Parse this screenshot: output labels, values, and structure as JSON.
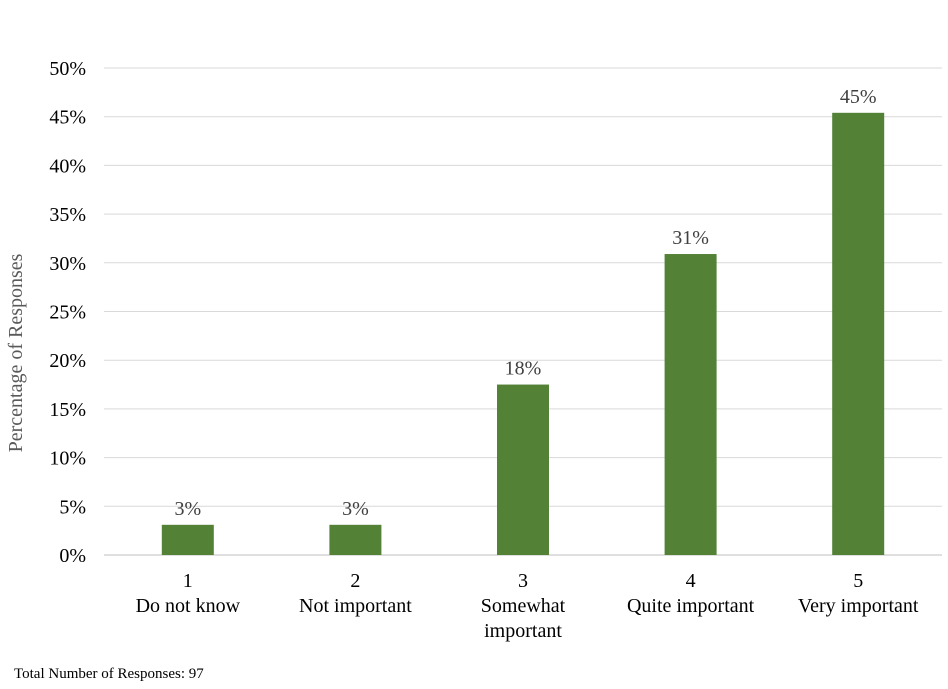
{
  "chart_data": {
    "type": "bar",
    "categories": [
      [
        "1",
        "Do not know"
      ],
      [
        "2",
        "Not important"
      ],
      [
        "3",
        "Somewhat",
        "important"
      ],
      [
        "4",
        "Quite important"
      ],
      [
        "5",
        "Very important"
      ]
    ],
    "values": [
      3.1,
      3.1,
      17.5,
      30.9,
      45.4
    ],
    "data_labels": [
      "3%",
      "3%",
      "18%",
      "31%",
      "45%"
    ],
    "ylabel": "Percentage of Responses",
    "ylim": [
      0,
      50
    ],
    "yticks": [
      0,
      5,
      10,
      15,
      20,
      25,
      30,
      35,
      40,
      45,
      50
    ],
    "ytick_labels": [
      "0%",
      "5%",
      "10%",
      "15%",
      "20%",
      "25%",
      "30%",
      "35%",
      "40%",
      "45%",
      "50%"
    ],
    "grid": true,
    "bar_color": "#538135",
    "grid_color": "#d9d9d9"
  },
  "footnote": "Total Number of Responses: 97"
}
